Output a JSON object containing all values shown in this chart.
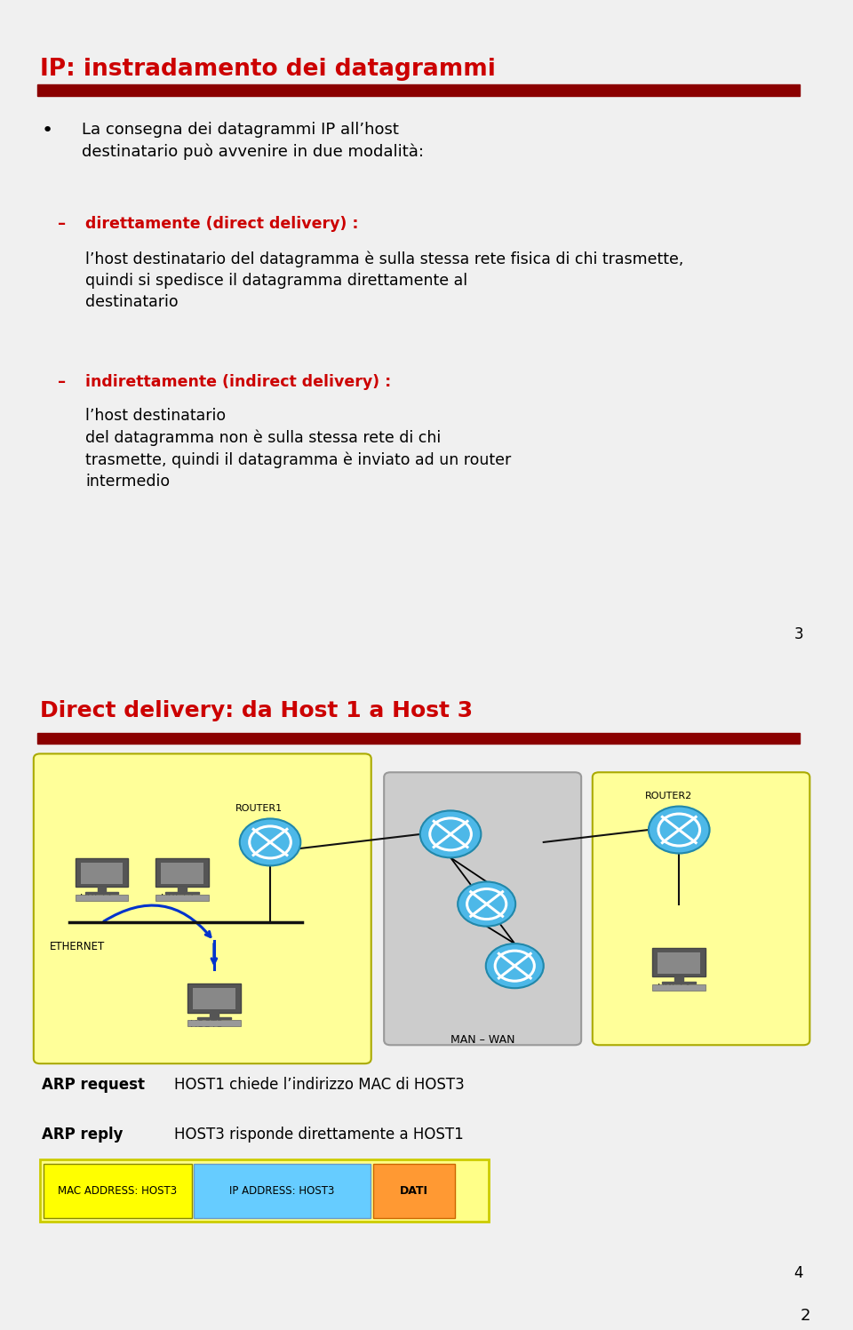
{
  "slide1": {
    "title": "IP: instradamento dei datagrammi",
    "title_color": "#cc0000",
    "bar_color": "#8b0000",
    "bullet_text": "La consegna dei datagrammi IP all’host destinatario può avvenire in due modalità:",
    "item1_bold": "direttamente (direct delivery) :",
    "item1_rest": " l’host destinatario del datagramma è sulla stessa rete fisica di chi trasmette, quindi si spedisce il datagramma direttamente al destinatario",
    "item2_bold": "indirettamente (indirect delivery) :",
    "item2_rest": " l’host destinatario del datagramma non è sulla stessa rete di chi trasmette, quindi il datagramma è inviato ad un router intermedio",
    "page_num": "3",
    "red_color": "#cc0000"
  },
  "slide2": {
    "title": "Direct delivery: da Host 1 a Host 3",
    "title_color": "#cc0000",
    "bar_color": "#8b0000",
    "yellow_bg": "#ffff99",
    "router_color": "#4db8e8",
    "arp_request_bold": "ARP request",
    "arp_request_text": "   HOST1 chiede l’indirizzo MAC di HOST3",
    "arp_reply_bold": "ARP reply",
    "arp_reply_text": "      HOST3 risponde direttamente a HOST1",
    "mac_label": "MAC ADDRESS: HOST3",
    "ip_label": "IP ADDRESS: HOST3",
    "dati_label": "DATI",
    "mac_color": "#ffff00",
    "ip_color": "#66ccff",
    "dati_color": "#ff9933",
    "page_num": "4"
  },
  "outer_page_num": "2",
  "bg_color": "#f0f0f0",
  "slide_bg": "#ffffff"
}
